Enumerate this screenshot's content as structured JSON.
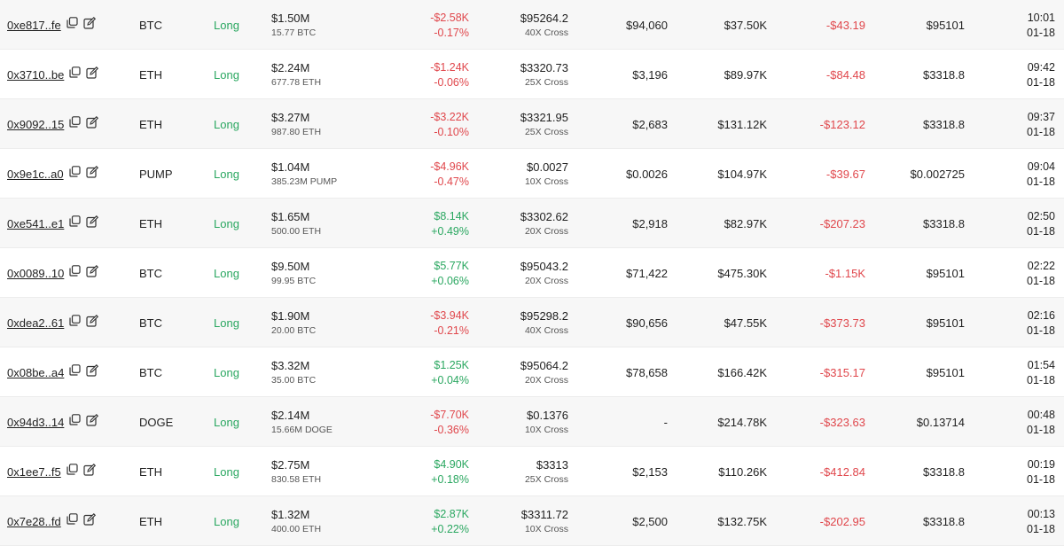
{
  "colors": {
    "positive": "#2aa760",
    "negative": "#e0474c",
    "row_alt": "#f7f7f7"
  },
  "icons": {
    "copy": "copy-icon",
    "edit": "edit-icon"
  },
  "rows": [
    {
      "address": "0xe817..fe",
      "coin": "BTC",
      "side": "Long",
      "value": "$1.50M",
      "amount": "15.77 BTC",
      "pnl": "-$2.58K",
      "pnl_pct": "-0.17%",
      "pnl_sign": "neg",
      "entry": "$95264.2",
      "leverage": "40X Cross",
      "liq": "$94,060",
      "margin": "$37.50K",
      "funding": "-$43.19",
      "funding_sign": "neg",
      "mark": "$95101",
      "time": "10:01",
      "date": "01-18"
    },
    {
      "address": "0x3710..be",
      "coin": "ETH",
      "side": "Long",
      "value": "$2.24M",
      "amount": "677.78 ETH",
      "pnl": "-$1.24K",
      "pnl_pct": "-0.06%",
      "pnl_sign": "neg",
      "entry": "$3320.73",
      "leverage": "25X Cross",
      "liq": "$3,196",
      "margin": "$89.97K",
      "funding": "-$84.48",
      "funding_sign": "neg",
      "mark": "$3318.8",
      "time": "09:42",
      "date": "01-18"
    },
    {
      "address": "0x9092..15",
      "coin": "ETH",
      "side": "Long",
      "value": "$3.27M",
      "amount": "987.80 ETH",
      "pnl": "-$3.22K",
      "pnl_pct": "-0.10%",
      "pnl_sign": "neg",
      "entry": "$3321.95",
      "leverage": "25X Cross",
      "liq": "$2,683",
      "margin": "$131.12K",
      "funding": "-$123.12",
      "funding_sign": "neg",
      "mark": "$3318.8",
      "time": "09:37",
      "date": "01-18"
    },
    {
      "address": "0x9e1c..a0",
      "coin": "PUMP",
      "side": "Long",
      "value": "$1.04M",
      "amount": "385.23M PUMP",
      "pnl": "-$4.96K",
      "pnl_pct": "-0.47%",
      "pnl_sign": "neg",
      "entry": "$0.0027",
      "leverage": "10X Cross",
      "liq": "$0.0026",
      "margin": "$104.97K",
      "funding": "-$39.67",
      "funding_sign": "neg",
      "mark": "$0.002725",
      "time": "09:04",
      "date": "01-18"
    },
    {
      "address": "0xe541..e1",
      "coin": "ETH",
      "side": "Long",
      "value": "$1.65M",
      "amount": "500.00 ETH",
      "pnl": "$8.14K",
      "pnl_pct": "+0.49%",
      "pnl_sign": "pos",
      "entry": "$3302.62",
      "leverage": "20X Cross",
      "liq": "$2,918",
      "margin": "$82.97K",
      "funding": "-$207.23",
      "funding_sign": "neg",
      "mark": "$3318.8",
      "time": "02:50",
      "date": "01-18"
    },
    {
      "address": "0x0089..10",
      "coin": "BTC",
      "side": "Long",
      "value": "$9.50M",
      "amount": "99.95 BTC",
      "pnl": "$5.77K",
      "pnl_pct": "+0.06%",
      "pnl_sign": "pos",
      "entry": "$95043.2",
      "leverage": "20X Cross",
      "liq": "$71,422",
      "margin": "$475.30K",
      "funding": "-$1.15K",
      "funding_sign": "neg",
      "mark": "$95101",
      "time": "02:22",
      "date": "01-18"
    },
    {
      "address": "0xdea2..61",
      "coin": "BTC",
      "side": "Long",
      "value": "$1.90M",
      "amount": "20.00 BTC",
      "pnl": "-$3.94K",
      "pnl_pct": "-0.21%",
      "pnl_sign": "neg",
      "entry": "$95298.2",
      "leverage": "40X Cross",
      "liq": "$90,656",
      "margin": "$47.55K",
      "funding": "-$373.73",
      "funding_sign": "neg",
      "mark": "$95101",
      "time": "02:16",
      "date": "01-18"
    },
    {
      "address": "0x08be..a4",
      "coin": "BTC",
      "side": "Long",
      "value": "$3.32M",
      "amount": "35.00 BTC",
      "pnl": "$1.25K",
      "pnl_pct": "+0.04%",
      "pnl_sign": "pos",
      "entry": "$95064.2",
      "leverage": "20X Cross",
      "liq": "$78,658",
      "margin": "$166.42K",
      "funding": "-$315.17",
      "funding_sign": "neg",
      "mark": "$95101",
      "time": "01:54",
      "date": "01-18"
    },
    {
      "address": "0x94d3..14",
      "coin": "DOGE",
      "side": "Long",
      "value": "$2.14M",
      "amount": "15.66M DOGE",
      "pnl": "-$7.70K",
      "pnl_pct": "-0.36%",
      "pnl_sign": "neg",
      "entry": "$0.1376",
      "leverage": "10X Cross",
      "liq": "-",
      "margin": "$214.78K",
      "funding": "-$323.63",
      "funding_sign": "neg",
      "mark": "$0.13714",
      "time": "00:48",
      "date": "01-18"
    },
    {
      "address": "0x1ee7..f5",
      "coin": "ETH",
      "side": "Long",
      "value": "$2.75M",
      "amount": "830.58 ETH",
      "pnl": "$4.90K",
      "pnl_pct": "+0.18%",
      "pnl_sign": "pos",
      "entry": "$3313",
      "leverage": "25X Cross",
      "liq": "$2,153",
      "margin": "$110.26K",
      "funding": "-$412.84",
      "funding_sign": "neg",
      "mark": "$3318.8",
      "time": "00:19",
      "date": "01-18"
    },
    {
      "address": "0x7e28..fd",
      "coin": "ETH",
      "side": "Long",
      "value": "$1.32M",
      "amount": "400.00 ETH",
      "pnl": "$2.87K",
      "pnl_pct": "+0.22%",
      "pnl_sign": "pos",
      "entry": "$3311.72",
      "leverage": "10X Cross",
      "liq": "$2,500",
      "margin": "$132.75K",
      "funding": "-$202.95",
      "funding_sign": "neg",
      "mark": "$3318.8",
      "time": "00:13",
      "date": "01-18"
    }
  ]
}
